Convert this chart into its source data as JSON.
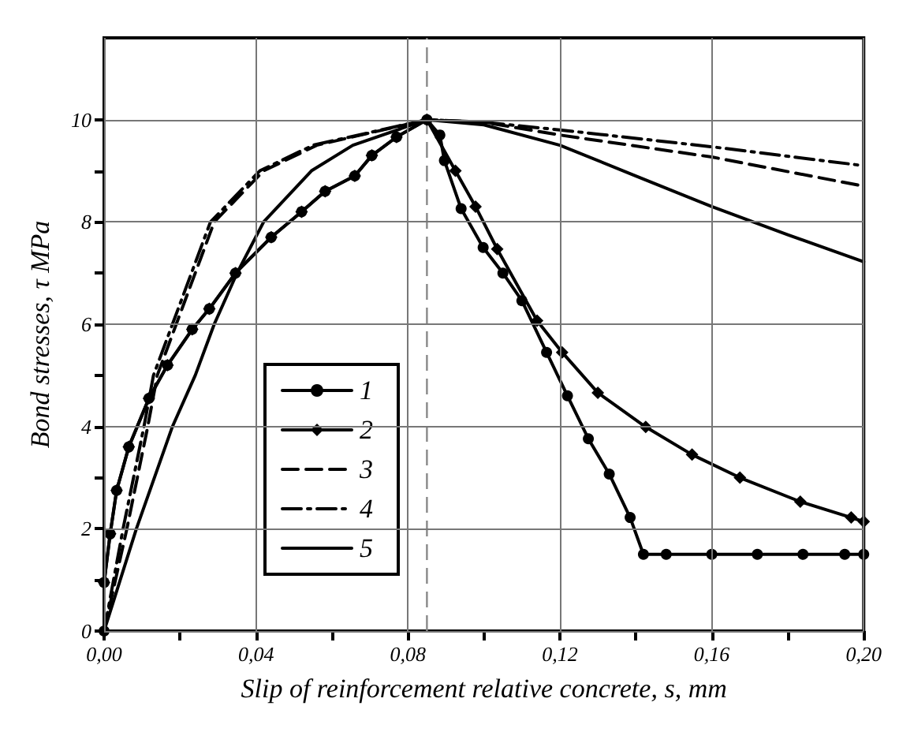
{
  "chart_data": {
    "type": "line",
    "xlabel": "Slip of reinforcement relative concrete, s, mm",
    "ylabel": "Bond stresses, τ MPa",
    "xlim": [
      0,
      0.2
    ],
    "ylim": [
      0,
      11.6
    ],
    "xticks": [
      {
        "value": 0,
        "label": "0,00"
      },
      {
        "value": 0.02,
        "label": null
      },
      {
        "value": 0.04,
        "label": "0,04"
      },
      {
        "value": 0.06,
        "label": null
      },
      {
        "value": 0.08,
        "label": "0,08"
      },
      {
        "value": 0.1,
        "label": null
      },
      {
        "value": 0.12,
        "label": "0,12"
      },
      {
        "value": 0.14,
        "label": null
      },
      {
        "value": 0.16,
        "label": "0,16"
      },
      {
        "value": 0.18,
        "label": null
      },
      {
        "value": 0.2,
        "label": "0,20"
      }
    ],
    "yticks": [
      0,
      {
        "value": 1,
        "label": null
      },
      2,
      {
        "value": 3,
        "label": null
      },
      4,
      {
        "value": 5,
        "label": null
      },
      6,
      {
        "value": 7,
        "label": null
      },
      8,
      {
        "value": 9,
        "label": null
      },
      10
    ],
    "grid": true,
    "legend": "bottom left",
    "ref_lines": [
      {
        "axis": "x",
        "value": 0.085,
        "label": null,
        "color": "#888888",
        "line_style": "dashed"
      }
    ],
    "series": [
      {
        "name": "1",
        "color": "#000000",
        "marker": "circle",
        "line_style": "solid",
        "x": [
          0,
          0,
          0.0016,
          0.0033,
          0.0065,
          0.0118,
          0.0167,
          0.0232,
          0.0277,
          0.0346,
          0.044,
          0.052,
          0.0582,
          0.066,
          0.0705,
          0.077,
          0.085,
          0.0884,
          0.0896,
          0.094,
          0.0998,
          0.105,
          0.11,
          0.1165,
          0.122,
          0.1275,
          0.133,
          0.1385,
          0.142,
          0.148,
          0.16,
          0.172,
          0.184,
          0.195,
          0.2
        ],
        "values": [
          0,
          0.95,
          1.9,
          2.75,
          3.6,
          4.55,
          5.2,
          5.9,
          6.3,
          7,
          7.7,
          8.2,
          8.6,
          8.9,
          9.3,
          9.66,
          10,
          9.7,
          9.2,
          8.26,
          7.5,
          7,
          6.46,
          5.45,
          4.6,
          3.76,
          3.07,
          2.22,
          1.5,
          1.5,
          1.5,
          1.5,
          1.5,
          1.5,
          1.5
        ]
      },
      {
        "name": "2",
        "color": "#000000",
        "marker": "diamond",
        "line_style": "solid",
        "x": [
          0,
          0,
          0.0016,
          0.0033,
          0.0065,
          0.0118,
          0.0167,
          0.0232,
          0.0277,
          0.0346,
          0.044,
          0.052,
          0.0582,
          0.066,
          0.0705,
          0.077,
          0.085,
          0.0925,
          0.0978,
          0.1035,
          0.114,
          0.1206,
          0.13,
          0.1426,
          0.1548,
          0.1674,
          0.1833,
          0.1967,
          0.2
        ],
        "values": [
          0,
          0.95,
          1.9,
          2.75,
          3.6,
          4.55,
          5.2,
          5.9,
          6.3,
          7,
          7.7,
          8.2,
          8.6,
          8.9,
          9.3,
          9.66,
          10,
          9,
          8.3,
          7.47,
          6.07,
          5.45,
          4.66,
          3.99,
          3.45,
          3,
          2.53,
          2.22,
          2.14
        ]
      },
      {
        "name": "3",
        "color": "#000000",
        "marker": "none",
        "line_style": "dashed",
        "x": [
          0,
          0.006,
          0.0115,
          0.014,
          0.019,
          0.029,
          0.042,
          0.056,
          0.085,
          0.1,
          0.12,
          0.16,
          0.2
        ],
        "values": [
          0,
          2,
          4,
          5,
          6,
          8,
          9,
          9.5,
          10,
          9.95,
          9.7,
          9.27,
          8.7
        ]
      },
      {
        "name": "4",
        "color": "#000000",
        "marker": "none",
        "line_style": "dashdot",
        "x": [
          0,
          0.005,
          0.0105,
          0.013,
          0.018,
          0.028,
          0.041,
          0.055,
          0.085,
          0.1,
          0.12,
          0.16,
          0.2
        ],
        "values": [
          0,
          2,
          4,
          5,
          6,
          8,
          9,
          9.5,
          10,
          9.95,
          9.8,
          9.47,
          9.1
        ]
      },
      {
        "name": "5",
        "color": "#000000",
        "marker": "none",
        "line_style": "solid",
        "x": [
          0,
          0.0085,
          0.018,
          0.024,
          0.029,
          0.035,
          0.042,
          0.0546,
          0.0655,
          0.085,
          0.1,
          0.12,
          0.14,
          0.16,
          0.18,
          0.2
        ],
        "values": [
          0,
          2,
          4,
          5,
          6,
          7,
          8,
          9,
          9.5,
          10,
          9.9,
          9.5,
          8.9,
          8.3,
          7.75,
          7.22
        ]
      }
    ]
  }
}
